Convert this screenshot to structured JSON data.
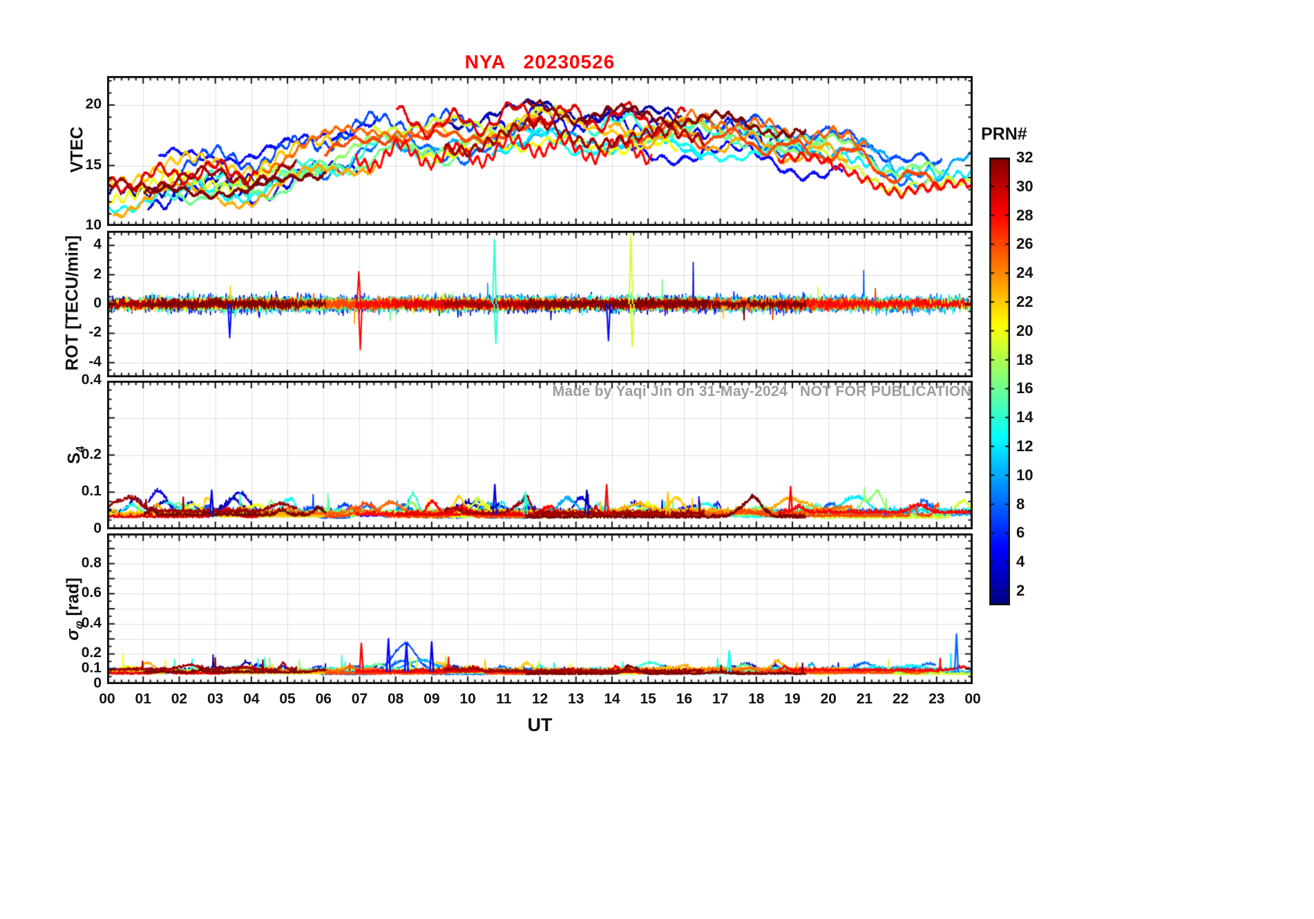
{
  "title": {
    "text": "NYA   20230526",
    "color": "#FF0000"
  },
  "xlabel": "UT",
  "x_tick_labels": [
    "00",
    "01",
    "02",
    "03",
    "04",
    "05",
    "06",
    "07",
    "08",
    "09",
    "10",
    "11",
    "12",
    "13",
    "14",
    "15",
    "16",
    "17",
    "18",
    "19",
    "20",
    "21",
    "22",
    "23",
    "00"
  ],
  "watermark": {
    "made_by": "Made by Yaqi Jin on 31-May-2024",
    "not_for_publication": "NOT FOR PUBLICATION",
    "color": "#9c9c9c"
  },
  "colorbar": {
    "label": "PRN#",
    "range": [
      1,
      32
    ],
    "tick_values": [
      2,
      4,
      6,
      8,
      10,
      12,
      14,
      16,
      18,
      20,
      22,
      24,
      26,
      28,
      30,
      32
    ],
    "colormap": "jet",
    "stops": [
      [
        0,
        "#00007F"
      ],
      [
        0.125,
        "#0000FF"
      ],
      [
        0.375,
        "#00FFFF"
      ],
      [
        0.625,
        "#FFFF00"
      ],
      [
        0.875,
        "#FF0000"
      ],
      [
        1,
        "#7F0000"
      ]
    ]
  },
  "chart_data": [
    {
      "type": "line",
      "kind": "vtec",
      "ylabel": "VTEC",
      "xlim": [
        0,
        24
      ],
      "ylim": [
        10,
        22.4
      ],
      "yticks": [
        {
          "v": 10,
          "l": "10"
        },
        {
          "v": 15,
          "l": "15"
        },
        {
          "v": 20,
          "l": "20"
        }
      ],
      "yminor_step": 1,
      "grid": true,
      "line_width": 2.6,
      "band": 1.7,
      "trend": [
        [
          0,
          13.2
        ],
        [
          1,
          13.6
        ],
        [
          2,
          14.2
        ],
        [
          3,
          14.3
        ],
        [
          4,
          14.2
        ],
        [
          5,
          14.9
        ],
        [
          6,
          15.9
        ],
        [
          7,
          16.9
        ],
        [
          8,
          17.6
        ],
        [
          9,
          17.3
        ],
        [
          10,
          17.2
        ],
        [
          11,
          17.9
        ],
        [
          12,
          18.3
        ],
        [
          13,
          17.7
        ],
        [
          14,
          17.9
        ],
        [
          15,
          17.7
        ],
        [
          16,
          17.4
        ],
        [
          17,
          17.3
        ],
        [
          18,
          16.9
        ],
        [
          19,
          16.3
        ],
        [
          20,
          16.1
        ],
        [
          21,
          15.6
        ],
        [
          22,
          13.9
        ],
        [
          23,
          13.7
        ],
        [
          24,
          14.7
        ]
      ],
      "description": "Vertical TEC tracks of ~30 GPS satellites (colored by PRN), values 10-21 TECU: ~13 at 00 UT rising to ~17-20 between 07 and 17 UT, decreasing to ~13-15 by 24 UT"
    },
    {
      "type": "line",
      "kind": "rot",
      "ylabel": "ROT [TECU/min]",
      "xlim": [
        0,
        24
      ],
      "ylim": [
        -5,
        5
      ],
      "yticks": [
        {
          "v": -4,
          "l": "-4"
        },
        {
          "v": -2,
          "l": "-2"
        },
        {
          "v": 0,
          "l": "0"
        },
        {
          "v": 2,
          "l": "2"
        },
        {
          "v": 4,
          "l": "4"
        }
      ],
      "yminor_step": 0.5,
      "grid": true,
      "line_width": 1.7,
      "baseline": 0,
      "spikes": [
        {
          "t": 10.74,
          "v": 4.4,
          "prn": 14
        },
        {
          "t": 10.78,
          "v": -2.7,
          "prn": 14
        },
        {
          "t": 14.52,
          "v": 4.75,
          "prn": 19
        },
        {
          "t": 14.56,
          "v": -2.9,
          "prn": 19
        },
        {
          "t": 7.02,
          "v": -3.1,
          "prn": 28
        },
        {
          "t": 6.98,
          "v": 2.2,
          "prn": 28
        },
        {
          "t": 13.9,
          "v": -2.5,
          "prn": 5
        },
        {
          "t": 3.4,
          "v": -2.3,
          "prn": 5
        }
      ],
      "description": "Rate of TEC, zero-mean fluctuations mostly within ±1.5 TECU/min; sporadic spikes to +4.4 (cyan, ~10.7 UT), +4.7 (yellow, ~14.5 UT), -3.1 (red, ~7 UT)"
    },
    {
      "type": "line",
      "kind": "s4",
      "ylabel": "S",
      "ylabel_sub": "4",
      "xlim": [
        0,
        24
      ],
      "ylim": [
        0,
        0.4
      ],
      "yticks": [
        {
          "v": 0,
          "l": "0"
        },
        {
          "v": 0.1,
          "l": "0.1"
        },
        {
          "v": 0.2,
          "l": "0.2"
        },
        {
          "v": 0.3,
          "l": ""
        },
        {
          "v": 0.4,
          "l": "0.4"
        }
      ],
      "yminor_step": 0.025,
      "grid": true,
      "line_width": 2.0,
      "baseline": 0.04,
      "spikes": [
        {
          "t": 2.9,
          "v": 0.105,
          "prn": 4
        },
        {
          "t": 10.75,
          "v": 0.12,
          "prn": 4
        },
        {
          "t": 11.6,
          "v": 0.1,
          "prn": 14
        },
        {
          "t": 13.85,
          "v": 0.12,
          "prn": 28
        },
        {
          "t": 15.55,
          "v": 0.1,
          "prn": 22
        },
        {
          "t": 18.95,
          "v": 0.115,
          "prn": 28
        },
        {
          "t": 13.3,
          "v": 0.105,
          "prn": 2
        }
      ],
      "description": "Amplitude scintillation index, quiet baseline ~0.03-0.06 with isolated peaks up to ~0.12"
    },
    {
      "type": "line",
      "kind": "sigma",
      "ylabel": "σ",
      "ylabel_sub": "φ",
      "ylabel_unit": " [rad]",
      "xlim": [
        0,
        24
      ],
      "ylim": [
        0,
        1
      ],
      "yticks": [
        {
          "v": 0,
          "l": "0"
        },
        {
          "v": 0.1,
          "l": "0.1"
        },
        {
          "v": 0.2,
          "l": "0.2"
        },
        {
          "v": 0.3,
          "l": ""
        },
        {
          "v": 0.4,
          "l": "0.4"
        },
        {
          "v": 0.5,
          "l": ""
        },
        {
          "v": 0.6,
          "l": "0.6"
        },
        {
          "v": 0.7,
          "l": ""
        },
        {
          "v": 0.8,
          "l": "0.8"
        },
        {
          "v": 0.9,
          "l": ""
        }
      ],
      "yminor_step": 0.05,
      "grid": true,
      "line_width": 2.0,
      "baseline": 0.08,
      "active_interval": [
        7,
        9.5
      ],
      "spikes": [
        {
          "t": 7.05,
          "v": 0.27,
          "prn": 28
        },
        {
          "t": 7.8,
          "v": 0.3,
          "prn": 5
        },
        {
          "t": 8.3,
          "v": 0.27,
          "prn": 5
        },
        {
          "t": 9.0,
          "v": 0.28,
          "prn": 4
        },
        {
          "t": 23.55,
          "v": 0.33,
          "prn": 8
        },
        {
          "t": 17.25,
          "v": 0.22,
          "prn": 13
        }
      ],
      "description": "Phase scintillation index, baseline ~0.05-0.12 rad; enhanced blue-PRN activity 7-9.5 UT up to ~0.3 and a blue spike ~0.33 near 23.5 UT"
    }
  ],
  "render": {
    "seed": 20230526,
    "prns": [
      2,
      4,
      5,
      7,
      8,
      10,
      12,
      13,
      14,
      16,
      17,
      19,
      20,
      22,
      23,
      25,
      26,
      28,
      29,
      31,
      32
    ]
  }
}
